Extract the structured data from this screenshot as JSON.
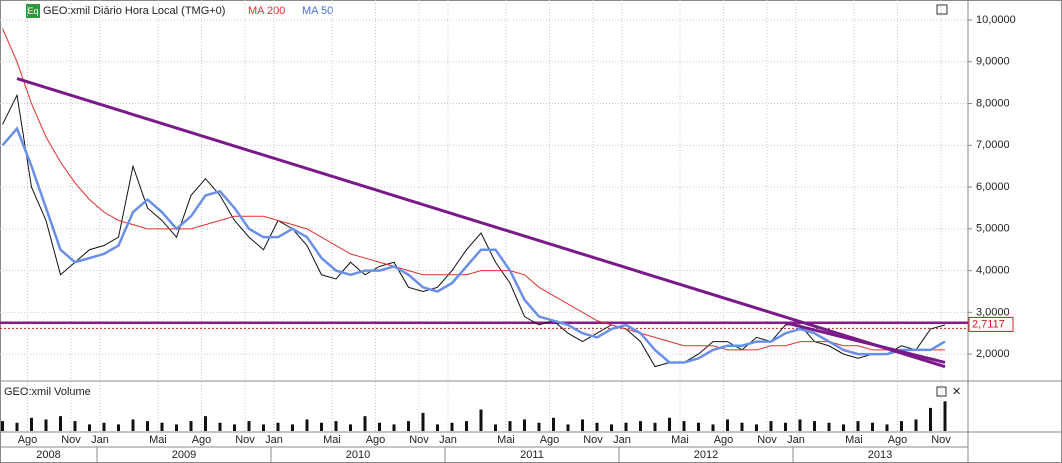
{
  "chart_data": {
    "type": "line",
    "badge": "Eq",
    "title": "GEO:xmil Diário Hora Local (TMG+0)",
    "volume_title": "GEO:xmil Volume",
    "last_price_label": "2,7117",
    "last_price": 2.7117,
    "categories": [
      null,
      null,
      "Ago",
      null,
      null,
      "Nov",
      null,
      "Jan",
      null,
      null,
      null,
      "Mai",
      null,
      null,
      "Ago",
      null,
      null,
      "Nov",
      null,
      "Jan",
      null,
      null,
      null,
      "Mai",
      null,
      null,
      "Ago",
      null,
      null,
      "Nov",
      null,
      "Jan",
      null,
      null,
      null,
      "Mai",
      null,
      null,
      "Ago",
      null,
      null,
      "Nov",
      null,
      "Jan",
      null,
      null,
      null,
      "Mai",
      null,
      null,
      "Ago",
      null,
      null,
      "Nov",
      null,
      "Jan",
      null,
      null,
      null,
      "Mai",
      null,
      null,
      "Ago",
      null,
      null,
      "Nov"
    ],
    "years": [
      "2008",
      "2009",
      "2010",
      "2011",
      "2012",
      "2013"
    ],
    "series": [
      {
        "name": "GEO:xmil",
        "color": "#111111",
        "values": [
          7.5,
          8.2,
          6.0,
          5.2,
          3.9,
          4.2,
          4.5,
          4.6,
          4.8,
          6.5,
          5.5,
          5.2,
          4.8,
          5.8,
          6.2,
          5.8,
          5.2,
          4.8,
          4.5,
          5.2,
          5.0,
          4.6,
          3.9,
          3.8,
          4.2,
          3.9,
          4.1,
          4.2,
          3.6,
          3.5,
          3.6,
          4.0,
          4.5,
          4.9,
          4.2,
          3.7,
          2.9,
          2.7,
          2.8,
          2.5,
          2.3,
          2.5,
          2.7,
          2.6,
          2.3,
          1.7,
          1.8,
          1.8,
          2.0,
          2.3,
          2.3,
          2.1,
          2.4,
          2.3,
          2.7,
          2.7,
          2.3,
          2.2,
          2.0,
          1.9,
          2.0,
          2.0,
          2.2,
          2.1,
          2.6,
          2.7
        ]
      },
      {
        "name": "MA 200",
        "color": "#e03030",
        "values": [
          9.8,
          9.0,
          8.0,
          7.2,
          6.6,
          6.1,
          5.7,
          5.4,
          5.2,
          5.1,
          5.0,
          5.0,
          5.0,
          5.0,
          5.1,
          5.2,
          5.3,
          5.3,
          5.3,
          5.2,
          5.1,
          5.0,
          4.8,
          4.6,
          4.4,
          4.3,
          4.2,
          4.1,
          4.0,
          3.9,
          3.9,
          3.9,
          3.9,
          4.0,
          4.0,
          4.0,
          3.9,
          3.6,
          3.4,
          3.2,
          3.0,
          2.8,
          2.7,
          2.6,
          2.5,
          2.4,
          2.3,
          2.2,
          2.2,
          2.2,
          2.1,
          2.1,
          2.1,
          2.2,
          2.2,
          2.3,
          2.3,
          2.3,
          2.2,
          2.2,
          2.1,
          2.1,
          2.1,
          2.1,
          2.1,
          2.1
        ]
      },
      {
        "name": "MA 50",
        "color": "#6a8fe8",
        "values": [
          7.0,
          7.4,
          6.5,
          5.5,
          4.5,
          4.2,
          4.3,
          4.4,
          4.6,
          5.4,
          5.7,
          5.4,
          5.0,
          5.3,
          5.8,
          5.9,
          5.5,
          5.0,
          4.8,
          4.8,
          5.0,
          4.8,
          4.3,
          4.0,
          3.9,
          4.0,
          4.0,
          4.1,
          3.9,
          3.6,
          3.5,
          3.7,
          4.1,
          4.5,
          4.5,
          4.0,
          3.3,
          2.9,
          2.8,
          2.7,
          2.5,
          2.4,
          2.6,
          2.7,
          2.5,
          2.1,
          1.8,
          1.8,
          1.9,
          2.1,
          2.2,
          2.2,
          2.3,
          2.3,
          2.5,
          2.6,
          2.5,
          2.3,
          2.1,
          2.0,
          2.0,
          2.0,
          2.1,
          2.1,
          2.1,
          2.3
        ]
      }
    ],
    "volume": [
      30,
      25,
      40,
      35,
      45,
      30,
      20,
      25,
      20,
      35,
      30,
      25,
      20,
      30,
      45,
      25,
      20,
      30,
      20,
      25,
      20,
      35,
      25,
      30,
      20,
      45,
      25,
      20,
      30,
      55,
      20,
      25,
      30,
      65,
      20,
      30,
      35,
      25,
      40,
      20,
      35,
      25,
      20,
      25,
      30,
      25,
      40,
      30,
      25,
      20,
      35,
      25,
      20,
      30,
      25,
      35,
      30,
      25,
      20,
      30,
      25,
      20,
      30,
      35,
      70,
      90
    ],
    "volume_ylim": [
      0,
      100
    ],
    "trend_lines": [
      {
        "start": [
          1,
          8.6
        ],
        "end": [
          65,
          1.7
        ]
      },
      {
        "start": [
          54,
          2.75
        ],
        "end": [
          65,
          1.8
        ]
      }
    ],
    "resistance": 2.75,
    "ylim": [
      1.38,
      10.48
    ],
    "yticks": [
      {
        "value": 2,
        "label": "2,0000"
      },
      {
        "value": 3,
        "label": "3,0000"
      },
      {
        "value": 4,
        "label": "4,0000"
      },
      {
        "value": 5,
        "label": "5,0000"
      },
      {
        "value": 6,
        "label": "6,0000"
      },
      {
        "value": 7,
        "label": "7,0000"
      },
      {
        "value": 8,
        "label": "8,0000"
      },
      {
        "value": 9,
        "label": "9,0000"
      },
      {
        "value": 10,
        "label": "10,0000"
      }
    ],
    "grid": true
  }
}
